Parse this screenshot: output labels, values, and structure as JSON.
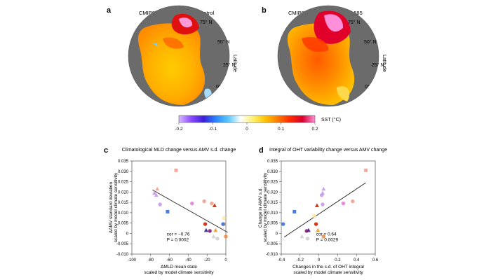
{
  "panels": {
    "a": {
      "letter": "a",
      "title": "CMIP6 AMV pattern in PiControl",
      "lat_labels": [
        "75° N",
        "50° N",
        "25° N",
        "0°"
      ],
      "side_label": "Latitude"
    },
    "b": {
      "letter": "b",
      "title": "CMIP6 AMV pattern in SSP 585",
      "lat_labels": [
        "75° N",
        "50° N",
        "25° N",
        "0°"
      ],
      "side_label": "Latitude"
    }
  },
  "colorbar": {
    "label": "SST (°C)",
    "ticks": [
      "-0.2",
      "-0.1",
      "0",
      "0.1",
      "0.2"
    ],
    "colors": [
      "#d9b8ff",
      "#8c4bff",
      "#3a1fd6",
      "#2a86ff",
      "#5cc8ff",
      "#ffffff",
      "#fff070",
      "#ffc400",
      "#ff7a00",
      "#ff2a00",
      "#d80030",
      "#ff8fd8"
    ]
  },
  "chart_data": [
    {
      "type": "scatter",
      "panel": "c",
      "title": "Climatological MLD change versus AMV s.d. change",
      "xlabel": "ΔMLD mean state",
      "xlabel2": "scaled by model climate sensitivity",
      "ylabel": "ΔAMV standard deviation",
      "ylabel2": "scaled by model climate sensitivity",
      "xlim": [
        -100,
        0
      ],
      "ylim": [
        -0.01,
        0.035
      ],
      "xticks": [
        "-100",
        "-80",
        "-60",
        "-40",
        "-20",
        "0"
      ],
      "yticks": [
        "-0.010",
        "-0.005",
        "0",
        "0.005",
        "0.010",
        "0.015",
        "0.020",
        "0.025",
        "0.030",
        "0.035"
      ],
      "xtick_values": [
        -100,
        -80,
        -60,
        -40,
        -20,
        0
      ],
      "ytick_values": [
        -0.01,
        -0.005,
        0,
        0.005,
        0.01,
        0.015,
        0.02,
        0.025,
        0.03,
        0.035
      ],
      "annotation": {
        "cor": "cor = −0.76",
        "p": "P = 0.0002"
      },
      "fit_line": [
        [
          -78,
          0.021
        ],
        [
          2,
          0.0005
        ]
      ],
      "points": [
        {
          "x": -53,
          "y": 0.0305,
          "marker": "square",
          "color": "#f7a08a"
        },
        {
          "x": -73,
          "y": 0.0215,
          "marker": "triangle",
          "color": "#f7a08a"
        },
        {
          "x": -76,
          "y": 0.0195,
          "marker": "triangle",
          "color": "#c59ae6"
        },
        {
          "x": -74,
          "y": 0.0185,
          "marker": "triangle",
          "color": "#c59ae6"
        },
        {
          "x": -70,
          "y": 0.014,
          "marker": "circle",
          "color": "#c59ae6"
        },
        {
          "x": -36,
          "y": 0.0145,
          "marker": "circle",
          "color": "#e07fdc"
        },
        {
          "x": -23,
          "y": 0.0155,
          "marker": "circle",
          "color": "#f7a08a"
        },
        {
          "x": -15,
          "y": 0.0145,
          "marker": "circle",
          "color": "#f7a08a"
        },
        {
          "x": -12,
          "y": 0.0135,
          "marker": "triangle",
          "color": "#cc2200"
        },
        {
          "x": -62,
          "y": 0.0105,
          "marker": "square",
          "color": "#3a6fe0"
        },
        {
          "x": -2,
          "y": 0.0075,
          "marker": "circle",
          "color": "#ffe7a0"
        },
        {
          "x": -2,
          "y": 0.0045,
          "marker": "circle",
          "color": "#e8a05c"
        },
        {
          "x": -3,
          "y": 0.0045,
          "marker": "circle",
          "color": "#3a6fe0"
        },
        {
          "x": -22,
          "y": 0.0045,
          "marker": "circle",
          "color": "#cc2200"
        },
        {
          "x": -21,
          "y": 0.0015,
          "marker": "triangle",
          "color": "#3a1a8a"
        },
        {
          "x": -17,
          "y": 0.0012,
          "marker": "circle",
          "color": "#7a1e7a"
        },
        {
          "x": -11,
          "y": 0.0015,
          "marker": "triangle",
          "color": "#e89a30"
        },
        {
          "x": -13,
          "y": -0.0015,
          "marker": "triangle",
          "color": "#d0d0d0"
        },
        {
          "x": 0,
          "y": -0.0015,
          "marker": "circle",
          "color": "#f08a40"
        },
        {
          "x": -9,
          "y": -0.0025,
          "marker": "circle",
          "color": "#d0d0d0"
        }
      ]
    },
    {
      "type": "scatter",
      "panel": "d",
      "title": "Integral of OHT variability change versus AMV change",
      "xlabel": "Changes in the s.d. of OHT integral",
      "xlabel2": "scaled by model climate sensitivity",
      "ylabel": "Change in AMV s.d.",
      "ylabel2": "scaled by model climate sensitivity",
      "xlim": [
        -0.4,
        0.6
      ],
      "ylim": [
        -0.01,
        0.035
      ],
      "xticks": [
        "-0.4",
        "-0.2",
        "0",
        "0.2",
        "0.4",
        "0.6"
      ],
      "yticks": [
        "-0.010",
        "-0.005",
        "0",
        "0.005",
        "0.010",
        "0.015",
        "0.020",
        "0.025",
        "0.030",
        "0.035"
      ],
      "xtick_values": [
        -0.4,
        -0.2,
        0,
        0.2,
        0.4,
        0.6
      ],
      "ytick_values": [
        -0.01,
        -0.005,
        0,
        0.005,
        0.01,
        0.015,
        0.02,
        0.025,
        0.03,
        0.035
      ],
      "annotation": {
        "cor": "cor = 0.64",
        "p": "P = 0.0029"
      },
      "fit_line": [
        [
          -0.37,
          -0.0018
        ],
        [
          0.5,
          0.0245
        ]
      ],
      "points": [
        {
          "x": 0.5,
          "y": 0.0305,
          "marker": "square",
          "color": "#f7a08a"
        },
        {
          "x": 0.05,
          "y": 0.0215,
          "marker": "triangle",
          "color": "#c59ae6"
        },
        {
          "x": 0.04,
          "y": 0.0195,
          "marker": "triangle",
          "color": "#c59ae6"
        },
        {
          "x": 0.03,
          "y": 0.0185,
          "marker": "circle",
          "color": "#c59ae6"
        },
        {
          "x": 0.04,
          "y": 0.014,
          "marker": "circle",
          "color": "#c59ae6"
        },
        {
          "x": 0.26,
          "y": 0.0145,
          "marker": "circle",
          "color": "#e07fdc"
        },
        {
          "x": 0.36,
          "y": 0.0155,
          "marker": "circle",
          "color": "#f7a08a"
        },
        {
          "x": -0.02,
          "y": 0.0135,
          "marker": "triangle",
          "color": "#cc2200"
        },
        {
          "x": -0.26,
          "y": 0.0105,
          "marker": "square",
          "color": "#3a6fe0"
        },
        {
          "x": -0.05,
          "y": 0.0085,
          "marker": "circle",
          "color": "#ffe7a0"
        },
        {
          "x": -0.38,
          "y": 0.0045,
          "marker": "circle",
          "color": "#3a6fe0"
        },
        {
          "x": -0.03,
          "y": 0.0045,
          "marker": "circle",
          "color": "#cc2200"
        },
        {
          "x": -0.11,
          "y": 0.0015,
          "marker": "triangle",
          "color": "#3a1a8a"
        },
        {
          "x": -0.13,
          "y": 0.0012,
          "marker": "circle",
          "color": "#7a1e7a"
        },
        {
          "x": -0.01,
          "y": 0.0015,
          "marker": "triangle",
          "color": "#e89a30"
        },
        {
          "x": -0.18,
          "y": -0.0015,
          "marker": "triangle",
          "color": "#d0d0d0"
        },
        {
          "x": 0.05,
          "y": -0.0015,
          "marker": "circle",
          "color": "#f08a40"
        },
        {
          "x": -0.12,
          "y": -0.0025,
          "marker": "circle",
          "color": "#d0d0d0"
        }
      ]
    }
  ]
}
